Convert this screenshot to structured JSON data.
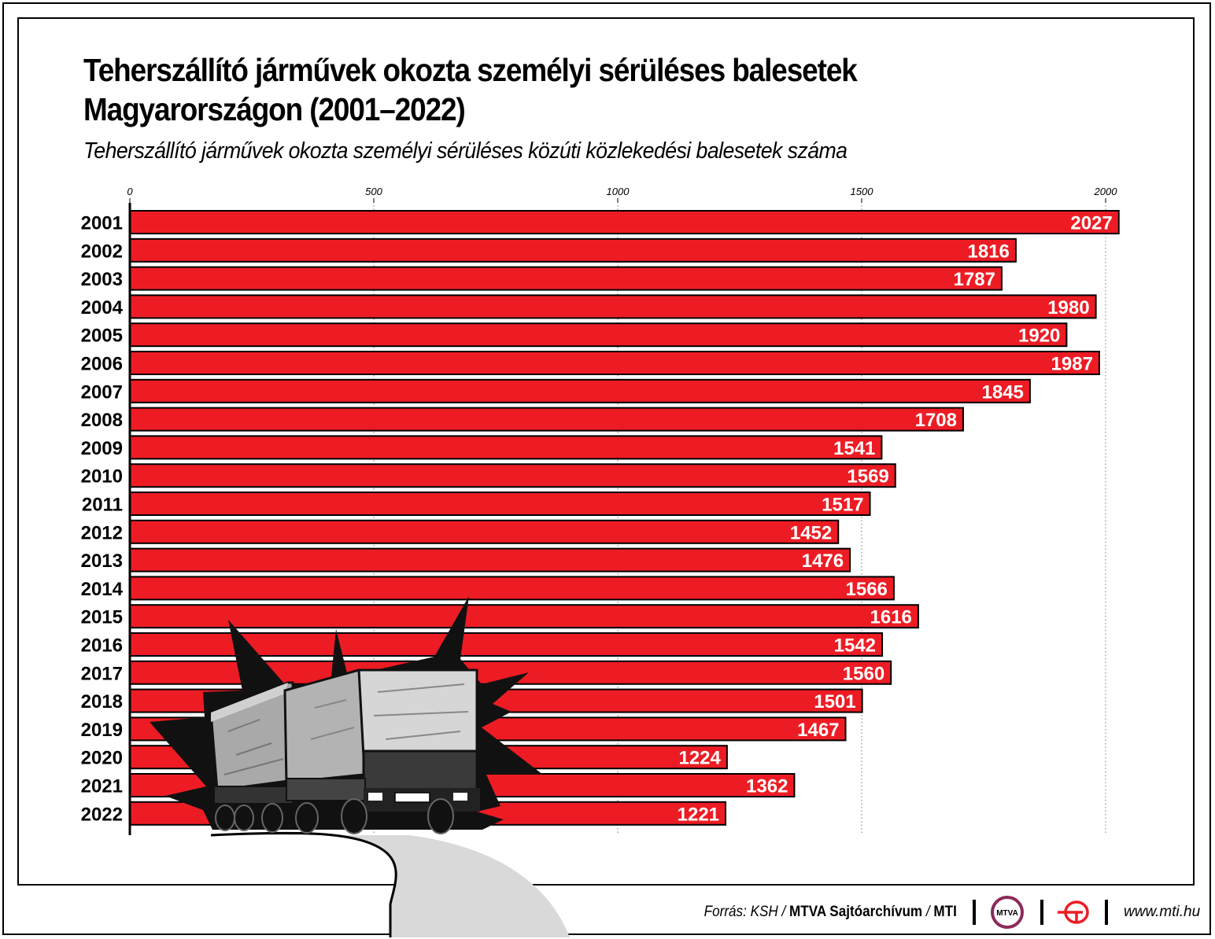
{
  "title_line1": "Teherszállító járművek okozta személyi sérüléses balesetek",
  "title_line2": "Magyarországon (2001–2022)",
  "subtitle": "Teherszállító járművek okozta személyi sérüléses közúti közlekedési balesetek száma",
  "chart_data": {
    "type": "bar",
    "orientation": "horizontal",
    "title": "Teherszállító járművek okozta személyi sérüléses balesetek Magyarországon (2001–2022)",
    "subtitle": "Teherszállító járművek okozta személyi sérüléses közúti közlekedési balesetek száma",
    "categories": [
      "2001",
      "2002",
      "2003",
      "2004",
      "2005",
      "2006",
      "2007",
      "2008",
      "2009",
      "2010",
      "2011",
      "2012",
      "2013",
      "2014",
      "2015",
      "2016",
      "2017",
      "2018",
      "2019",
      "2020",
      "2021",
      "2022"
    ],
    "values": [
      2027,
      1816,
      1787,
      1980,
      1920,
      1987,
      1845,
      1708,
      1541,
      1569,
      1517,
      1452,
      1476,
      1566,
      1616,
      1542,
      1560,
      1501,
      1467,
      1224,
      1362,
      1221
    ],
    "xlim": [
      0,
      2000
    ],
    "ticks": [
      0,
      500,
      1000,
      1500,
      2000
    ],
    "tick_labels": [
      "0",
      "500",
      "1000",
      "1500",
      "2000"
    ],
    "axis_position": "top",
    "grid": true,
    "grid_style": "dotted vertical",
    "data_labels": "inside bar end",
    "bar_color": "#ed1c24",
    "label_color": "#ffffff"
  },
  "footer": {
    "source_prefix": "Forrás: KSH /",
    "source_org": "MTVA Sajtóarchívum",
    "source_sep": "/",
    "source_mti": "MTI",
    "mtva_logo_text": "MTVA",
    "website": "www.mti.hu"
  },
  "colors": {
    "bar": "#ed1c24",
    "text": "#000000",
    "accent": "#8c2a5b",
    "mti_red": "#ed1c24"
  },
  "icons": [
    "truck-illustration",
    "mtva-logo",
    "mti-logo"
  ]
}
